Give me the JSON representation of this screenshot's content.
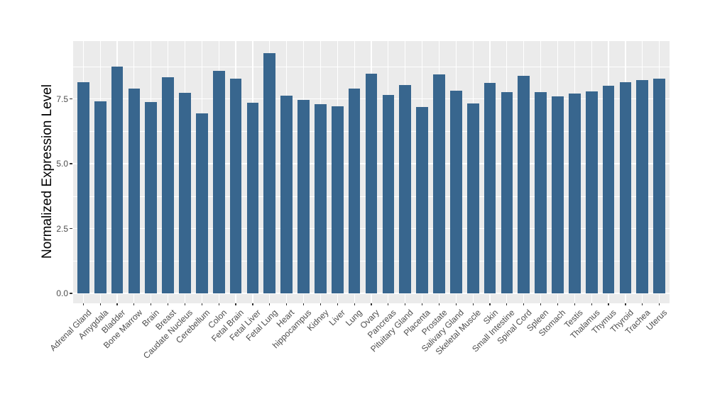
{
  "figure": {
    "background_color": "#FFFFFF"
  },
  "chart_data": {
    "type": "bar",
    "title": "",
    "xlabel": "",
    "ylabel": "Normalized Expression Level",
    "legend": "none",
    "grid": true,
    "panel_background": "#EBEBEB",
    "gridline_color": "#FFFFFF",
    "bar_color": "#38668E",
    "tick_color": "#333333",
    "tick_label_color": "#4D4D4D",
    "axis_title_color": "#000000",
    "ylim": [
      -0.38,
      9.72
    ],
    "yticks": [
      0.0,
      2.5,
      5.0,
      7.5
    ],
    "ytick_labels": [
      "0.0",
      "2.5",
      "5.0",
      "7.5"
    ],
    "minor_gridlines": [
      1.25,
      3.75,
      6.25,
      8.75
    ],
    "categories": [
      "Adrenal Gland",
      "Amygdala",
      "Bladder",
      "Bone Marrow",
      "Brain",
      "Breast",
      "Caudate Nucleus",
      "Cerebellum",
      "Colon",
      "Fetal Brain",
      "Fetal Liver",
      "Fetal Lung",
      "Heart",
      "hippocampus",
      "Kidney",
      "Liver",
      "Lung",
      "Ovary",
      "Pancreas",
      "Pituitary Gland",
      "Placenta",
      "Prostate",
      "Salivary Gland",
      "Skeletal Muscle",
      "Skin",
      "Small Intestine",
      "Spinal Cord",
      "Spleen",
      "Stomach",
      "Testis",
      "Thalamus",
      "Thymus",
      "Thyroid",
      "Trachea",
      "Uterus"
    ],
    "values": [
      8.15,
      7.4,
      8.75,
      7.89,
      7.39,
      8.33,
      7.72,
      6.93,
      8.59,
      8.29,
      7.34,
      9.27,
      7.61,
      7.46,
      7.29,
      7.21,
      7.89,
      8.47,
      7.64,
      8.02,
      7.18,
      8.45,
      7.81,
      7.33,
      8.11,
      7.75,
      8.4,
      7.75,
      7.59,
      7.7,
      7.78,
      8.0,
      8.15,
      8.22,
      8.28
    ]
  }
}
